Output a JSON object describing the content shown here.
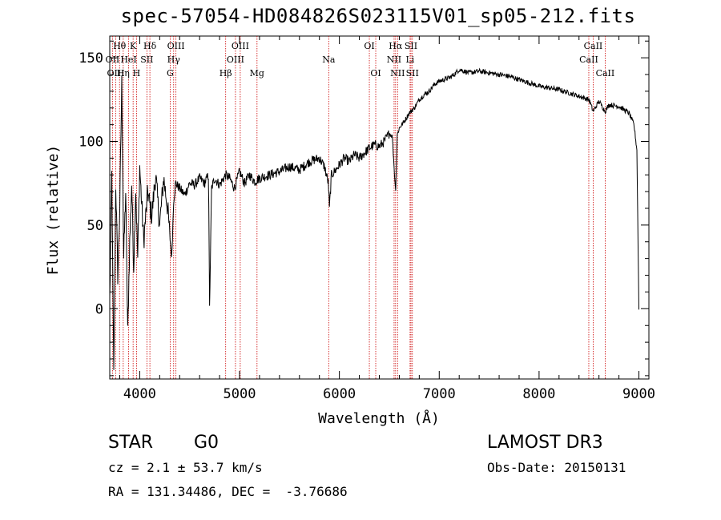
{
  "title": "spec-57054-HD084826S023115V01_sp05-212.fits",
  "footer": {
    "object_class": "STAR",
    "subclass": "G0",
    "survey": "LAMOST DR3",
    "redshift_line": "cz = 2.1 ± 53.7 km/s",
    "obs_date": "Obs-Date: 20150131",
    "coords_line": "RA = 131.34486, DEC =  -3.76686"
  },
  "colors": {
    "line_marker": "#cc0000",
    "spectrum": "#000000"
  },
  "chart_data": {
    "type": "line",
    "title": "spec-57054-HD084826S023115V01_sp05-212.fits",
    "xlabel": "Wavelength (Å)",
    "ylabel": "Flux (relative)",
    "xlim": [
      3700,
      9100
    ],
    "ylim": [
      -42,
      163
    ],
    "xticks": [
      4000,
      5000,
      6000,
      7000,
      8000,
      9000
    ],
    "yticks": [
      0,
      50,
      100,
      150
    ],
    "series": [
      {
        "name": "flux",
        "x": [
          3700,
          3720,
          3740,
          3760,
          3780,
          3800,
          3820,
          3840,
          3860,
          3880,
          3900,
          3920,
          3940,
          3960,
          3980,
          4000,
          4040,
          4080,
          4120,
          4160,
          4200,
          4240,
          4280,
          4320,
          4340,
          4360,
          4400,
          4450,
          4500,
          4550,
          4600,
          4650,
          4690,
          4700,
          4720,
          4750,
          4800,
          4861,
          4900,
          4950,
          5000,
          5050,
          5100,
          5150,
          5200,
          5300,
          5400,
          5500,
          5600,
          5700,
          5800,
          5850,
          5890,
          5900,
          5920,
          5950,
          6000,
          6050,
          6100,
          6150,
          6200,
          6250,
          6300,
          6350,
          6400,
          6450,
          6500,
          6530,
          6563,
          6580,
          6600,
          6650,
          6700,
          6750,
          6800,
          6850,
          6900,
          6950,
          7000,
          7050,
          7100,
          7150,
          7200,
          7300,
          7400,
          7500,
          7600,
          7700,
          7800,
          7900,
          8000,
          8100,
          8200,
          8300,
          8400,
          8500,
          8542,
          8600,
          8662,
          8700,
          8800,
          8900,
          8950,
          8980,
          9000
        ],
        "y": [
          5,
          80,
          -40,
          75,
          20,
          60,
          135,
          30,
          70,
          -15,
          40,
          75,
          25,
          72,
          30,
          85,
          40,
          70,
          55,
          80,
          50,
          78,
          60,
          30,
          65,
          75,
          72,
          68,
          75,
          74,
          78,
          75,
          80,
          0,
          72,
          78,
          74,
          80,
          78,
          72,
          82,
          75,
          80,
          76,
          78,
          80,
          82,
          85,
          83,
          88,
          90,
          85,
          75,
          60,
          80,
          82,
          86,
          90,
          88,
          92,
          90,
          93,
          96,
          98,
          97,
          100,
          105,
          103,
          70,
          104,
          108,
          112,
          117,
          120,
          125,
          128,
          130,
          134,
          136,
          137,
          138,
          140,
          143,
          141,
          142,
          141,
          140,
          139,
          137,
          135,
          133,
          132,
          131,
          129,
          127,
          125,
          118,
          124,
          118,
          122,
          121,
          117,
          110,
          95,
          0
        ]
      }
    ],
    "line_markers": [
      {
        "label": "Hθ",
        "wave": 3798,
        "row": 0
      },
      {
        "label": "K",
        "wave": 3934,
        "row": 0
      },
      {
        "label": "Hδ",
        "wave": 4102,
        "row": 0
      },
      {
        "label": "OIII",
        "wave": 4363,
        "row": 0
      },
      {
        "label": "OIII",
        "wave": 5007,
        "row": 0
      },
      {
        "label": "OI",
        "wave": 6300,
        "row": 0
      },
      {
        "label": "Hα",
        "wave": 6563,
        "row": 0
      },
      {
        "label": "SII",
        "wave": 6717,
        "row": 0
      },
      {
        "label": "CaII",
        "wave": 8542,
        "row": 0
      },
      {
        "label": "OII",
        "wave": 3727,
        "row": 1
      },
      {
        "label": "HeI",
        "wave": 3889,
        "row": 1
      },
      {
        "label": "SII",
        "wave": 4072,
        "row": 1
      },
      {
        "label": "Hγ",
        "wave": 4340,
        "row": 1
      },
      {
        "label": "OIII",
        "wave": 4959,
        "row": 1
      },
      {
        "label": "Na",
        "wave": 5893,
        "row": 1
      },
      {
        "label": "NII",
        "wave": 6548,
        "row": 1
      },
      {
        "label": "Li",
        "wave": 6708,
        "row": 1
      },
      {
        "label": "CaII",
        "wave": 8498,
        "row": 1
      },
      {
        "label": "OIII",
        "wave": 3760,
        "row": 2
      },
      {
        "label": "Hη",
        "wave": 3835,
        "row": 2
      },
      {
        "label": "H",
        "wave": 3968,
        "row": 2
      },
      {
        "label": "G",
        "wave": 4305,
        "row": 2
      },
      {
        "label": "Hβ",
        "wave": 4861,
        "row": 2
      },
      {
        "label": "Mg",
        "wave": 5175,
        "row": 2
      },
      {
        "label": "OI",
        "wave": 6364,
        "row": 2
      },
      {
        "label": "NII",
        "wave": 6583,
        "row": 2
      },
      {
        "label": "SII",
        "wave": 6731,
        "row": 2
      },
      {
        "label": "CaII",
        "wave": 8662,
        "row": 2
      }
    ]
  }
}
